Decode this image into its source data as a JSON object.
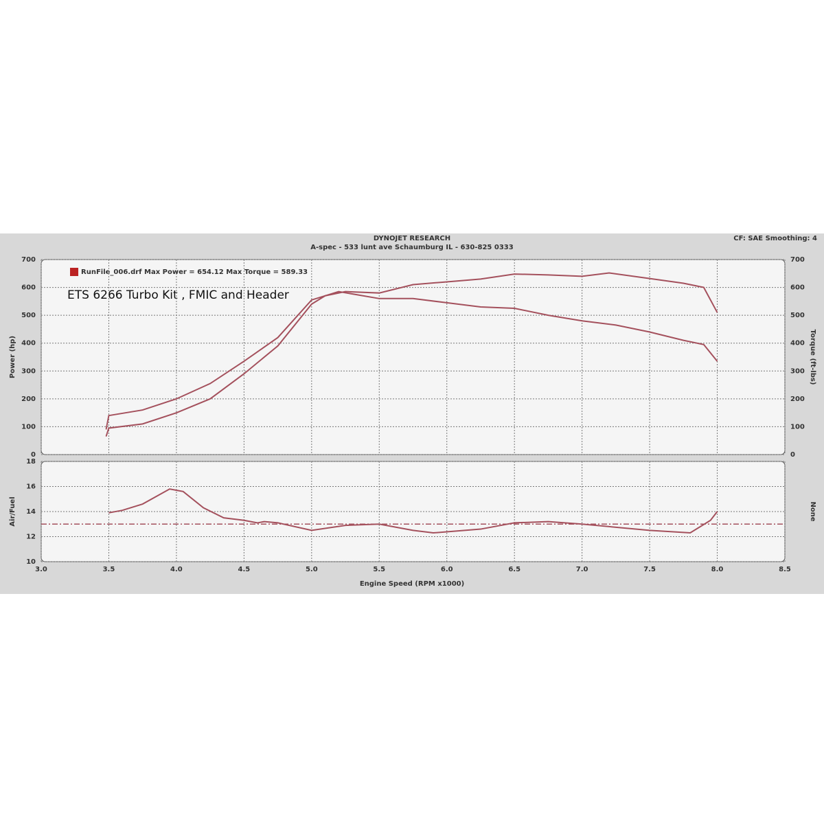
{
  "header": {
    "title": "DYNOJET RESEARCH",
    "subtitle": "A-spec - 533 lunt ave Schaumburg IL - 630-825 0333",
    "settings": "CF: SAE  Smoothing: 4"
  },
  "chart_data": [
    {
      "type": "line",
      "legend_text": "RunFile_006.drf Max Power = 654.12 Max Torque = 589.33",
      "annotation": "ETS 6266 Turbo Kit , FMIC and Header",
      "ylabel": "Power (hp)",
      "y2label": "Torque (ft-lbs)",
      "xlim": [
        3.0,
        8.5
      ],
      "xticks": [
        3,
        3.5,
        4,
        4.5,
        5,
        5.5,
        6,
        6.5,
        7,
        7.5,
        8,
        8.5
      ],
      "ylim": [
        0,
        700
      ],
      "yticks": [
        0,
        100,
        200,
        300,
        400,
        500,
        600,
        700
      ],
      "y2lim": [
        0,
        700
      ],
      "y2ticks": [
        0,
        100,
        200,
        300,
        400,
        500,
        600,
        700
      ],
      "grid": true,
      "series": [
        {
          "color": "#a4505c",
          "x": [
            3.48,
            3.5,
            3.75,
            4.0,
            4.25,
            4.5,
            4.75,
            5.0,
            5.1,
            5.25,
            5.5,
            5.75,
            6.0,
            6.25,
            6.5,
            6.75,
            7.0,
            7.2,
            7.5,
            7.75,
            7.9,
            8.0
          ],
          "values": [
            65,
            95,
            110,
            150,
            200,
            290,
            390,
            540,
            570,
            585,
            580,
            610,
            620,
            630,
            648,
            645,
            640,
            652,
            632,
            615,
            600,
            510
          ]
        },
        {
          "color": "#a4505c",
          "axis": "y2",
          "x": [
            3.48,
            3.5,
            3.75,
            4.0,
            4.25,
            4.5,
            4.75,
            5.0,
            5.2,
            5.5,
            5.75,
            6.0,
            6.25,
            6.5,
            6.75,
            7.0,
            7.25,
            7.5,
            7.75,
            7.9,
            8.0
          ],
          "values": [
            90,
            140,
            160,
            200,
            255,
            335,
            420,
            555,
            585,
            560,
            560,
            545,
            530,
            525,
            500,
            480,
            465,
            440,
            410,
            395,
            335
          ]
        }
      ]
    },
    {
      "type": "line",
      "ylabel": "Air/Fuel",
      "y2label": "None",
      "xlabel": "Engine Speed (RPM x1000)",
      "xlim": [
        3.0,
        8.5
      ],
      "xticks": [
        {
          "value": 3,
          "label": "3.0"
        },
        {
          "value": 3.5,
          "label": "3.5"
        },
        {
          "value": 4,
          "label": "4.0"
        },
        {
          "value": 4.5,
          "label": "4.5"
        },
        {
          "value": 5,
          "label": "5.0"
        },
        {
          "value": 5.5,
          "label": "5.5"
        },
        {
          "value": 6,
          "label": "6.0"
        },
        {
          "value": 6.5,
          "label": "6.5"
        },
        {
          "value": 7,
          "label": "7.0"
        },
        {
          "value": 7.5,
          "label": "7.5"
        },
        {
          "value": 8,
          "label": "8.0"
        },
        {
          "value": 8.5,
          "label": "8.5"
        }
      ],
      "ylim": [
        10,
        18
      ],
      "yticks": [
        10,
        12,
        14,
        16,
        18
      ],
      "grid": true,
      "reference_line": 13,
      "series": [
        {
          "color": "#a4505c",
          "x": [
            3.5,
            3.6,
            3.75,
            3.95,
            4.05,
            4.2,
            4.35,
            4.5,
            4.6,
            4.65,
            4.75,
            5.0,
            5.25,
            5.5,
            5.75,
            5.9,
            6.25,
            6.5,
            6.75,
            7.0,
            7.5,
            7.8,
            7.95,
            8.0
          ],
          "values": [
            13.9,
            14.1,
            14.6,
            15.8,
            15.6,
            14.3,
            13.5,
            13.3,
            13.1,
            13.2,
            13.1,
            12.5,
            12.9,
            13.0,
            12.5,
            12.3,
            12.6,
            13.1,
            13.2,
            13.0,
            12.5,
            12.3,
            13.3,
            14.0
          ]
        }
      ]
    }
  ]
}
